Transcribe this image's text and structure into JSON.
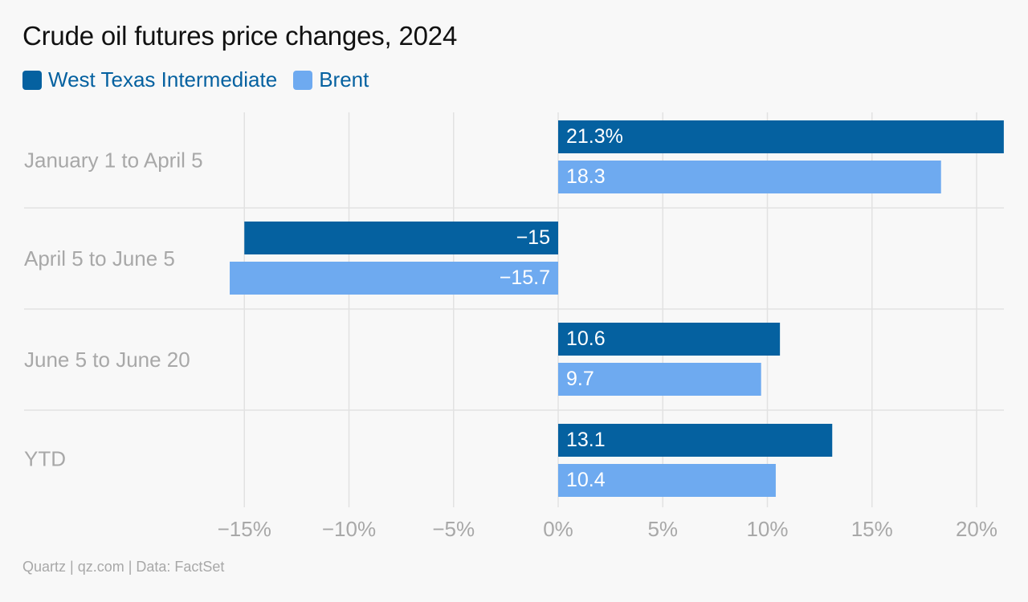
{
  "title": "Crude oil futures price changes, 2024",
  "source": "Quartz | qz.com | Data: FactSet",
  "colors": {
    "wti": "#0561a0",
    "brent": "#6eaaf0",
    "legend_text": "#0561a0",
    "category_text": "#a8a8a8",
    "tick_text": "#a8a8a8",
    "grid": "#e2e2e2"
  },
  "chart_data": {
    "type": "bar",
    "orientation": "horizontal",
    "title": "Crude oil futures price changes, 2024",
    "categories": [
      "January 1 to April 5",
      "April 5 to June 5",
      "June 5 to June 20",
      "YTD"
    ],
    "series": [
      {
        "name": "West Texas Intermediate",
        "values": [
          21.3,
          -15,
          10.6,
          13.1
        ],
        "labels": [
          "21.3%",
          "−15",
          "10.6",
          "13.1"
        ]
      },
      {
        "name": "Brent",
        "values": [
          18.3,
          -15.7,
          9.7,
          10.4
        ],
        "labels": [
          "18.3",
          "−15.7",
          "9.7",
          "10.4"
        ]
      }
    ],
    "xlim": [
      -15.7,
      21.3
    ],
    "xticks": [
      -15,
      -10,
      -5,
      0,
      5,
      10,
      15,
      20
    ],
    "xtick_labels": [
      "−15%",
      "−10%",
      "−5%",
      "0%",
      "5%",
      "10%",
      "15%",
      "20%"
    ],
    "grid": true,
    "legend_position": "top-left"
  }
}
